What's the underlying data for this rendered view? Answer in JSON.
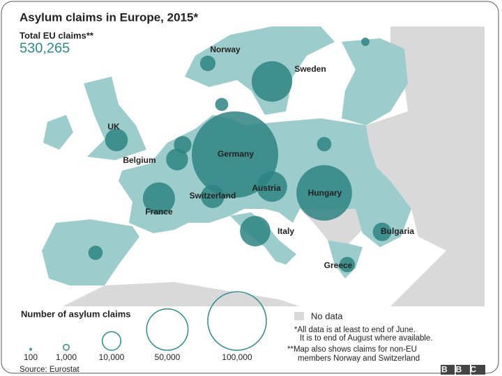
{
  "title": "Asylum claims in Europe, 2015*",
  "total_label": "Total EU claims**",
  "total_value": "530,265",
  "countries": [
    {
      "label": "Norway",
      "value": 7000
    },
    {
      "label": "Sweden",
      "value": 48000
    },
    {
      "label": "UK",
      "value": 15000
    },
    {
      "label": "Belgium",
      "value": 14000
    },
    {
      "label": "Germany",
      "value": 218000
    },
    {
      "label": null,
      "value": 9000
    },
    {
      "label": "Austria",
      "value": 27000
    },
    {
      "label": "Hungary",
      "value": 90000
    },
    {
      "label": "Switzerland",
      "value": 16000
    },
    {
      "label": "France",
      "value": 30000
    },
    {
      "label": "Italy",
      "value": 27000
    },
    {
      "label": "Bulgaria",
      "value": 10000
    },
    {
      "label": "Greece",
      "value": 7000
    },
    {
      "label": null,
      "value": 6000
    },
    {
      "label": null,
      "value": 6000
    },
    {
      "label": null,
      "value": 5000
    },
    {
      "label": null,
      "value": 2000
    }
  ],
  "legend": {
    "title": "Number of asylum claims",
    "sizes": [
      100,
      {
        "value": 1000,
        "label": "1,000"
      },
      {
        "value": 10000,
        "label": "10,000"
      },
      {
        "value": 50000,
        "label": "50,000"
      },
      {
        "value": 100000,
        "label": "100,000"
      }
    ],
    "no_data": "No data"
  },
  "notes": [
    "*All data is at least to end of June.",
    "It is to end of August where available.",
    "**Map also shows claims for non-EU",
    "members Norway and Switzerland"
  ],
  "source": "Source: Eurostat",
  "logo": "BBC"
}
